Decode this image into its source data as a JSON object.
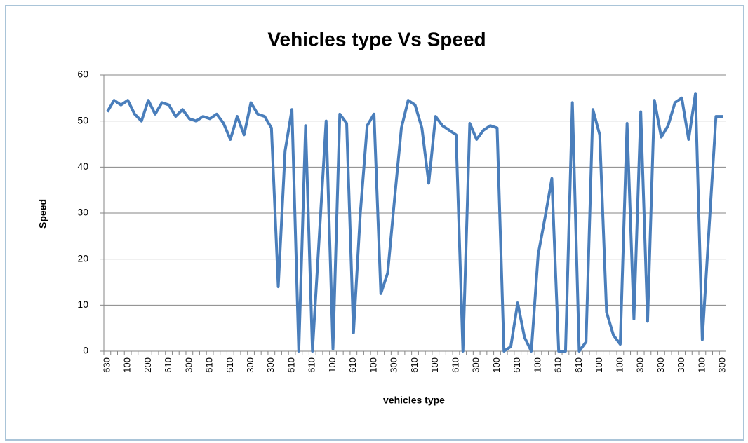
{
  "chart_data": {
    "type": "line",
    "title": "Vehicles type Vs Speed",
    "x_label": "vehicles type",
    "y_label": "Speed",
    "categories": [
      "630",
      null,
      null,
      "100",
      null,
      null,
      "200",
      null,
      null,
      "610",
      null,
      null,
      "300",
      null,
      null,
      "610",
      null,
      null,
      "610",
      null,
      null,
      "300",
      null,
      null,
      "300",
      null,
      null,
      "610",
      null,
      null,
      "610",
      null,
      null,
      "100",
      null,
      null,
      "610",
      null,
      null,
      "100",
      null,
      null,
      "300",
      null,
      null,
      "610",
      null,
      null,
      "100",
      null,
      null,
      "610",
      null,
      null,
      "300",
      null,
      null,
      "100",
      null,
      null,
      "610",
      null,
      null,
      "100",
      null,
      null,
      "610",
      null,
      null,
      "610",
      null,
      null,
      "100",
      null,
      null,
      "100",
      null,
      null,
      "300",
      null,
      null,
      "300",
      null,
      null,
      "300",
      null,
      null,
      "100",
      null,
      null,
      "300"
    ],
    "series": [
      {
        "name": "Speed",
        "color": "#4a7ebb",
        "values": [
          52,
          54.5,
          53.5,
          54.5,
          51.5,
          50,
          54.5,
          51.5,
          54,
          53.5,
          51,
          52.5,
          50.5,
          50,
          51,
          50.5,
          51.5,
          49.5,
          46,
          51,
          47,
          54,
          51.5,
          51,
          48.5,
          14,
          43.5,
          52.5,
          0,
          49,
          0,
          25,
          50,
          0.5,
          51.5,
          49.5,
          4,
          30,
          49,
          51.5,
          12.5,
          17,
          33,
          48.5,
          54.5,
          53.5,
          48.5,
          36.5,
          51,
          49,
          48,
          47,
          0,
          49.5,
          46,
          48,
          49,
          48.5,
          0,
          1,
          10.5,
          3,
          0,
          21,
          29,
          37.5,
          0,
          0,
          54,
          0,
          2,
          52.5,
          47,
          8.5,
          3.5,
          1.5,
          49.5,
          7,
          52,
          6.5,
          54.5,
          46.5,
          49,
          54,
          55,
          46,
          56,
          2.5,
          27,
          51,
          51
        ]
      }
    ],
    "ylim": [
      0,
      60
    ],
    "yticks": [
      0,
      10,
      20,
      30,
      40,
      50,
      60
    ],
    "grid": true
  }
}
